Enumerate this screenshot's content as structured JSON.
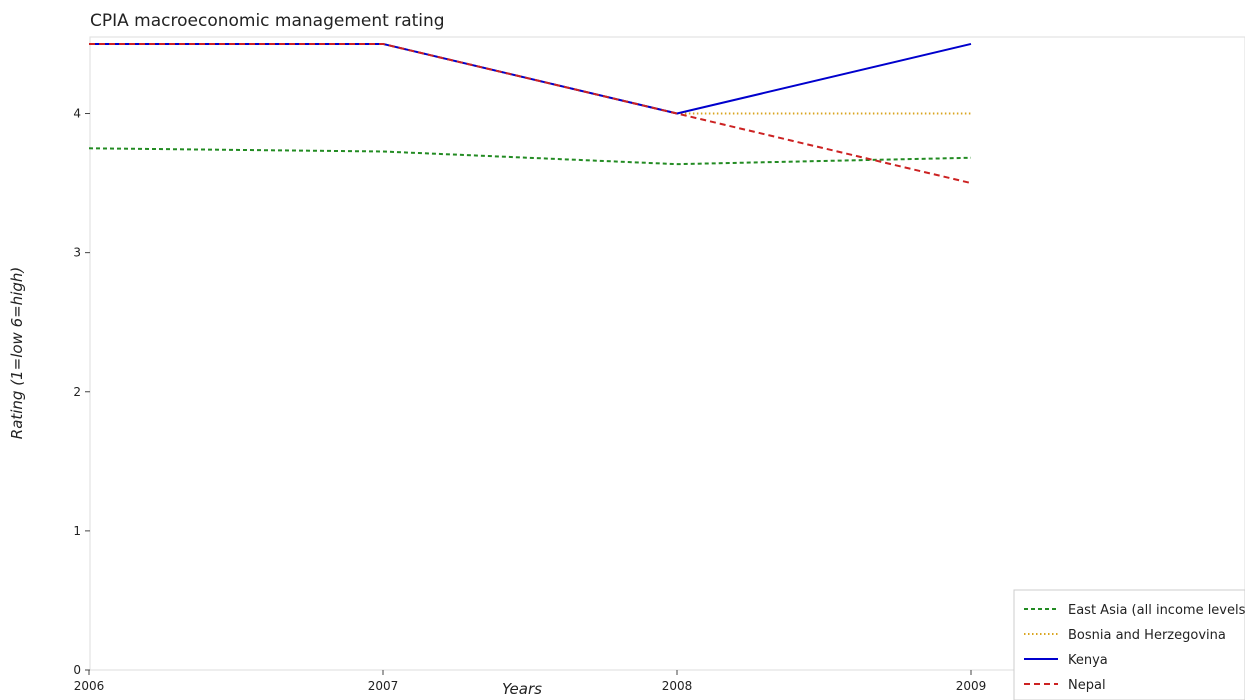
{
  "chart_data": {
    "type": "line",
    "title": "CPIA macroeconomic management rating",
    "xlabel": "Years",
    "ylabel": "Rating (1=low 6=high)",
    "categories": [
      "2006",
      "2007",
      "2008",
      "2009"
    ],
    "ylim": [
      0,
      4.55
    ],
    "yticks": [
      0,
      1,
      2,
      3,
      4
    ],
    "ytick_labels": [
      "0",
      "1",
      "2",
      "3",
      "4"
    ],
    "grid": false,
    "legend_position": "bottom-right",
    "series": [
      {
        "name": "East Asia (all income levels)",
        "values": [
          3.75,
          3.727,
          3.636,
          3.682
        ],
        "color": "#228B22",
        "dash": "4,3"
      },
      {
        "name": "Bosnia and Herzegovina",
        "values": [
          4.5,
          4.5,
          4.0,
          4.0
        ],
        "color": "#DAA520",
        "dash": "1.5,2.5"
      },
      {
        "name": "Kenya",
        "values": [
          4.5,
          4.5,
          4.0,
          4.5
        ],
        "color": "#0000CD",
        "dash": ""
      },
      {
        "name": "Nepal",
        "values": [
          4.5,
          4.5,
          4.0,
          3.5
        ],
        "color": "#CC2222",
        "dash": "6,4"
      }
    ]
  }
}
